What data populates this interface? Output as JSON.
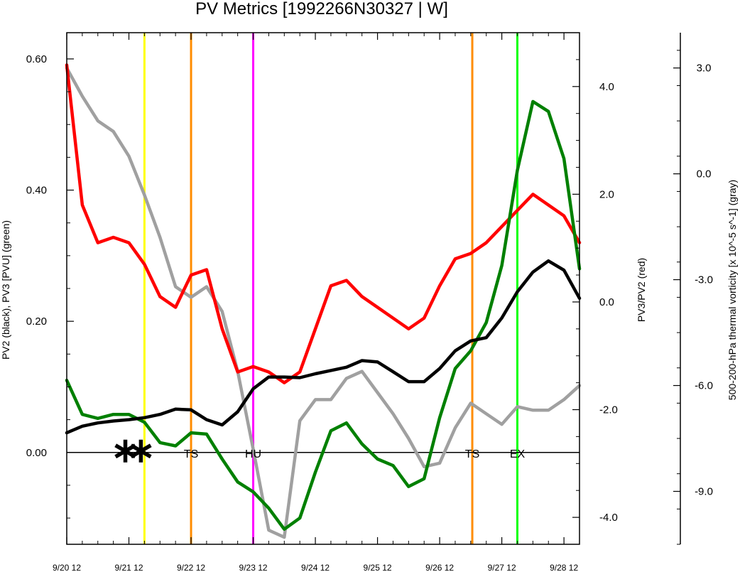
{
  "chart_data": {
    "type": "line",
    "title": "PV Metrics [1992266N30327 | W]",
    "left_axis": {
      "label": "PV2 (black), PV3 [PVU] (green)",
      "ylim": [
        -0.14,
        0.64
      ],
      "ticks": [
        0.0,
        0.2,
        0.4,
        0.6
      ],
      "tick_labels": [
        "0.00",
        "0.20",
        "0.40",
        "0.60"
      ]
    },
    "right_axis": {
      "label": "PV3/PV2 (red)",
      "ylim": [
        -4.5,
        5.0
      ],
      "ticks": [
        -4.0,
        -2.0,
        0.0,
        2.0,
        4.0
      ],
      "tick_labels": [
        "-4.0",
        "-2.0",
        "0.0",
        "2.0",
        "4.0"
      ]
    },
    "far_right_axis": {
      "label": "500-200-hPa thermal vorticity [x 10^-5 s^-1] (gray)",
      "ylim": [
        -10.5,
        4.0
      ],
      "ticks": [
        -9.0,
        -6.0,
        -3.0,
        0.0,
        3.0
      ],
      "tick_labels": [
        "-9.0",
        "-6.0",
        "-3.0",
        "0.0",
        "3.0"
      ]
    },
    "x_axis": {
      "xlim": [
        0,
        33
      ],
      "ticks": [
        0,
        4,
        8,
        12,
        16,
        20,
        24,
        28,
        32
      ],
      "tick_labels": [
        "9/20 12",
        "9/21 12",
        "9/22 12",
        "9/23 12",
        "9/24 12",
        "9/25 12",
        "9/26 12",
        "9/27 12",
        "9/28 12"
      ]
    },
    "x": [
      0,
      1,
      2,
      3,
      4,
      5,
      6,
      7,
      8,
      9,
      10,
      11,
      12,
      13,
      14,
      15,
      16,
      17,
      18,
      19,
      20,
      21,
      22,
      23,
      24,
      25,
      26,
      27,
      28,
      29,
      30,
      31,
      32,
      33
    ],
    "series": [
      {
        "key": "pv2",
        "axis": "left",
        "color": "#000000",
        "values": [
          0.03,
          0.04,
          0.045,
          0.048,
          0.05,
          0.053,
          0.058,
          0.066,
          0.065,
          0.05,
          0.042,
          0.062,
          0.097,
          0.115,
          0.115,
          0.114,
          0.12,
          0.125,
          0.13,
          0.14,
          0.138,
          0.123,
          0.108,
          0.108,
          0.128,
          0.155,
          0.17,
          0.175,
          0.205,
          0.245,
          0.275,
          0.292,
          0.278,
          0.235
        ]
      },
      {
        "key": "pv3",
        "axis": "left",
        "color": "#008000",
        "values": [
          0.11,
          0.058,
          0.052,
          0.058,
          0.058,
          0.046,
          0.015,
          0.01,
          0.03,
          0.028,
          -0.01,
          -0.045,
          -0.06,
          -0.085,
          -0.117,
          -0.1,
          -0.03,
          0.033,
          0.045,
          0.013,
          -0.01,
          -0.02,
          -0.052,
          -0.04,
          0.053,
          0.128,
          0.155,
          0.198,
          0.285,
          0.43,
          0.535,
          0.52,
          0.448,
          0.28
        ]
      },
      {
        "key": "ratio",
        "axis": "right",
        "color": "#ff0000",
        "values": [
          4.4,
          1.8,
          1.1,
          1.2,
          1.1,
          0.7,
          0.1,
          -0.1,
          0.5,
          0.6,
          -0.5,
          -1.3,
          -1.2,
          -1.3,
          -1.5,
          -1.3,
          -0.5,
          0.3,
          0.4,
          0.1,
          -0.1,
          -0.3,
          -0.5,
          -0.3,
          0.3,
          0.8,
          0.9,
          1.1,
          1.4,
          1.7,
          2.0,
          1.8,
          1.6,
          1.1
        ]
      },
      {
        "key": "vort",
        "axis": "far_right",
        "color": "#a0a0a0",
        "values": [
          3.0,
          2.2,
          1.5,
          1.2,
          0.5,
          -0.6,
          -1.8,
          -3.2,
          -3.5,
          -3.2,
          -3.9,
          -5.6,
          -7.8,
          -10.1,
          -10.3,
          -7.0,
          -6.4,
          -6.4,
          -5.8,
          -5.6,
          -6.2,
          -6.8,
          -7.5,
          -8.3,
          -8.2,
          -7.2,
          -6.5,
          -6.8,
          -7.1,
          -6.6,
          -6.7,
          -6.7,
          -6.4,
          -6.0
        ]
      }
    ],
    "vlines": [
      {
        "x": 5.0,
        "color": "#ffff00"
      },
      {
        "x": 8.0,
        "color": "#ff8c00"
      },
      {
        "x": 12.0,
        "color": "#ff00ff"
      },
      {
        "x": 26.1,
        "color": "#ff8c00"
      },
      {
        "x": 29.0,
        "color": "#00ff00"
      }
    ],
    "stage_labels": [
      {
        "x": 8.0,
        "text": "TS"
      },
      {
        "x": 12.0,
        "text": "HU"
      },
      {
        "x": 26.1,
        "text": "TS"
      },
      {
        "x": 29.0,
        "text": "EX"
      }
    ],
    "asterisks": [
      4.0,
      5.0
    ]
  }
}
